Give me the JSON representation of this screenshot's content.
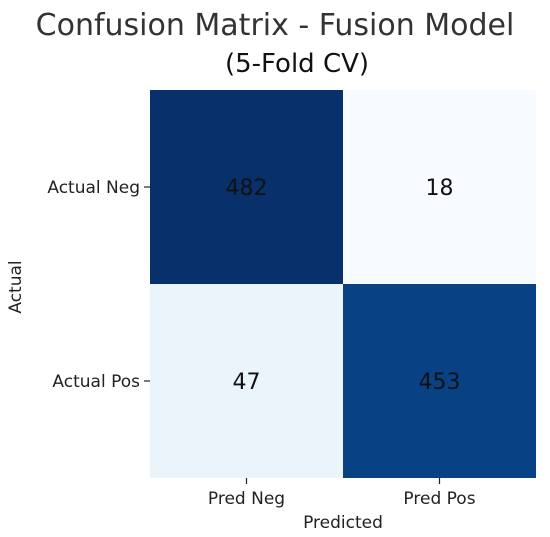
{
  "chart_data": {
    "type": "heatmap",
    "title": "Confusion Matrix - Fusion Model",
    "subtitle": "(5-Fold CV)",
    "xlabel": "Predicted",
    "ylabel": "Actual",
    "x_categories": [
      "Pred Neg",
      "Pred Pos"
    ],
    "y_categories": [
      "Actual Neg",
      "Actual Pos"
    ],
    "values": [
      [
        482,
        18
      ],
      [
        47,
        453
      ]
    ],
    "colormap": "Blues",
    "colorbar": false,
    "colors": {
      "low": "#f7fbff",
      "high": "#08306b"
    },
    "value_range": [
      18,
      482
    ]
  }
}
